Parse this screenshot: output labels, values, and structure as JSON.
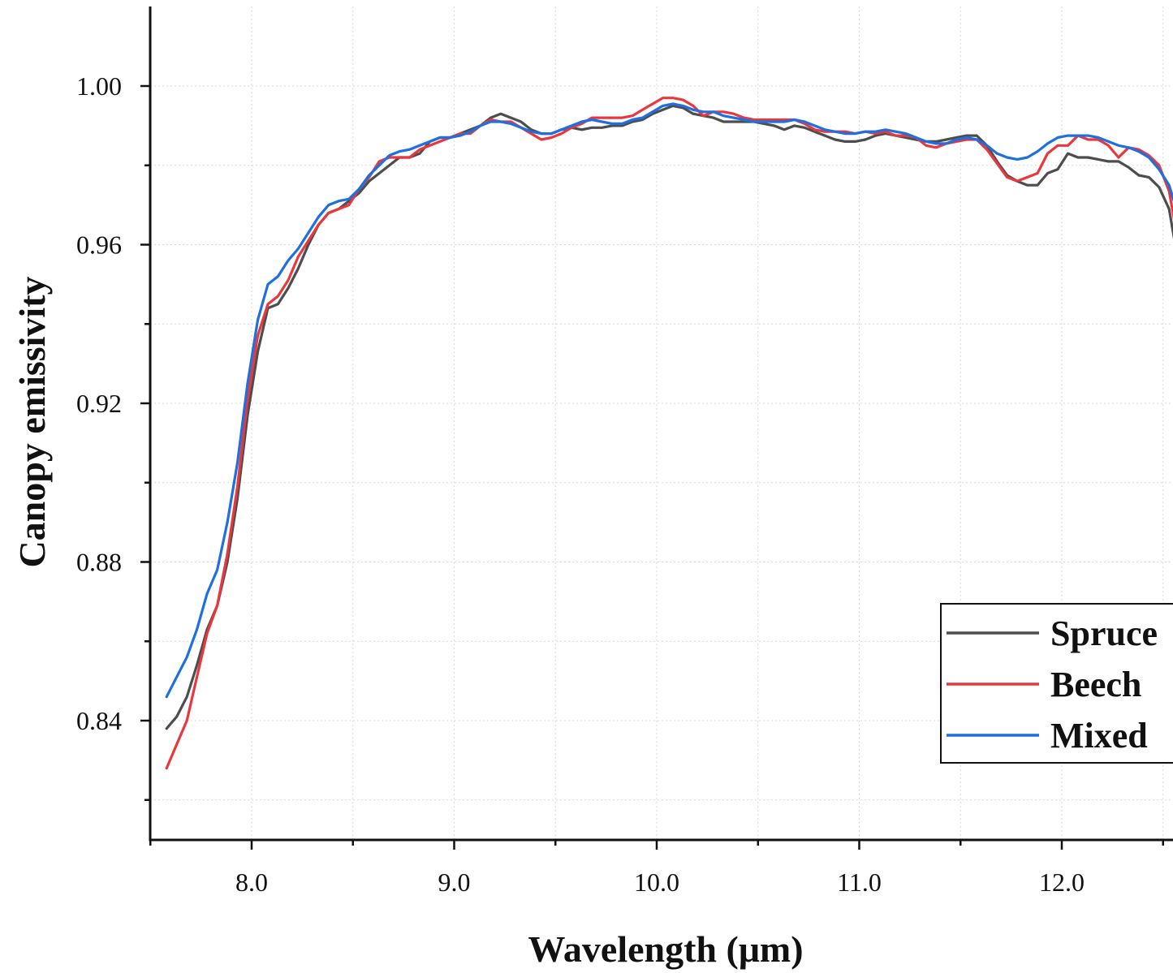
{
  "chart_data": {
    "type": "line",
    "title": "",
    "xlabel": "Wavelength (μm)",
    "ylabel": "Canopy emissivity",
    "xlim": [
      7.5,
      12.55
    ],
    "ylim": [
      0.81,
      1.02
    ],
    "x_ticks": [
      8.0,
      9.0,
      10.0,
      11.0,
      12.0
    ],
    "x_tick_labels": [
      "8.0",
      "9.0",
      "10.0",
      "11.0",
      "12.0"
    ],
    "x_minor_ticks": [
      7.5,
      8.5,
      9.5,
      10.5,
      11.5,
      12.5
    ],
    "y_ticks": [
      0.84,
      0.88,
      0.92,
      0.96,
      1.0
    ],
    "y_tick_labels": [
      "0.84",
      "0.88",
      "0.92",
      "0.96",
      "1.00"
    ],
    "y_minor_ticks": [
      0.82,
      0.86,
      0.9,
      0.94,
      0.98
    ],
    "grid": true,
    "legend_position": "bottom-right",
    "series": [
      {
        "name": "Spruce",
        "color": "#4d4d4d",
        "points": [
          [
            7.58,
            0.838
          ],
          [
            7.63,
            0.841
          ],
          [
            7.68,
            0.846
          ],
          [
            7.73,
            0.854
          ],
          [
            7.78,
            0.863
          ],
          [
            7.83,
            0.869
          ],
          [
            7.88,
            0.88
          ],
          [
            7.93,
            0.896
          ],
          [
            7.98,
            0.917
          ],
          [
            8.03,
            0.933
          ],
          [
            8.08,
            0.944
          ],
          [
            8.13,
            0.945
          ],
          [
            8.18,
            0.949
          ],
          [
            8.23,
            0.954
          ],
          [
            8.28,
            0.96
          ],
          [
            8.33,
            0.965
          ],
          [
            8.38,
            0.968
          ],
          [
            8.43,
            0.969
          ],
          [
            8.48,
            0.971
          ],
          [
            8.53,
            0.973
          ],
          [
            8.58,
            0.976
          ],
          [
            8.63,
            0.978
          ],
          [
            8.68,
            0.98
          ],
          [
            8.73,
            0.982
          ],
          [
            8.78,
            0.982
          ],
          [
            8.83,
            0.983
          ],
          [
            8.88,
            0.986
          ],
          [
            8.93,
            0.987
          ],
          [
            8.98,
            0.987
          ],
          [
            9.03,
            0.988
          ],
          [
            9.08,
            0.989
          ],
          [
            9.13,
            0.99
          ],
          [
            9.18,
            0.992
          ],
          [
            9.23,
            0.993
          ],
          [
            9.28,
            0.992
          ],
          [
            9.33,
            0.991
          ],
          [
            9.38,
            0.989
          ],
          [
            9.43,
            0.988
          ],
          [
            9.48,
            0.988
          ],
          [
            9.53,
            0.989
          ],
          [
            9.58,
            0.9895
          ],
          [
            9.63,
            0.989
          ],
          [
            9.68,
            0.9895
          ],
          [
            9.73,
            0.9895
          ],
          [
            9.78,
            0.99
          ],
          [
            9.83,
            0.99
          ],
          [
            9.88,
            0.991
          ],
          [
            9.93,
            0.9915
          ],
          [
            9.98,
            0.993
          ],
          [
            10.03,
            0.994
          ],
          [
            10.08,
            0.995
          ],
          [
            10.13,
            0.9945
          ],
          [
            10.18,
            0.993
          ],
          [
            10.23,
            0.9925
          ],
          [
            10.28,
            0.992
          ],
          [
            10.33,
            0.991
          ],
          [
            10.38,
            0.991
          ],
          [
            10.43,
            0.991
          ],
          [
            10.48,
            0.991
          ],
          [
            10.53,
            0.9905
          ],
          [
            10.58,
            0.99
          ],
          [
            10.63,
            0.989
          ],
          [
            10.68,
            0.99
          ],
          [
            10.73,
            0.9895
          ],
          [
            10.78,
            0.9885
          ],
          [
            10.83,
            0.9875
          ],
          [
            10.88,
            0.9865
          ],
          [
            10.93,
            0.986
          ],
          [
            10.98,
            0.986
          ],
          [
            11.03,
            0.9865
          ],
          [
            11.08,
            0.9875
          ],
          [
            11.13,
            0.988
          ],
          [
            11.18,
            0.9875
          ],
          [
            11.23,
            0.987
          ],
          [
            11.28,
            0.9865
          ],
          [
            11.33,
            0.986
          ],
          [
            11.38,
            0.986
          ],
          [
            11.43,
            0.9865
          ],
          [
            11.48,
            0.987
          ],
          [
            11.53,
            0.9875
          ],
          [
            11.58,
            0.9875
          ],
          [
            11.63,
            0.985
          ],
          [
            11.68,
            0.981
          ],
          [
            11.73,
            0.9775
          ],
          [
            11.78,
            0.976
          ],
          [
            11.83,
            0.975
          ],
          [
            11.88,
            0.975
          ],
          [
            11.93,
            0.978
          ],
          [
            11.98,
            0.979
          ],
          [
            12.03,
            0.983
          ],
          [
            12.08,
            0.982
          ],
          [
            12.13,
            0.982
          ],
          [
            12.18,
            0.9815
          ],
          [
            12.23,
            0.981
          ],
          [
            12.28,
            0.981
          ],
          [
            12.33,
            0.9795
          ],
          [
            12.38,
            0.9775
          ],
          [
            12.43,
            0.977
          ],
          [
            12.48,
            0.9745
          ],
          [
            12.53,
            0.969
          ],
          [
            12.56,
            0.96
          ]
        ]
      },
      {
        "name": "Beech",
        "color": "#e8383d",
        "points": [
          [
            7.58,
            0.828
          ],
          [
            7.63,
            0.834
          ],
          [
            7.68,
            0.84
          ],
          [
            7.73,
            0.851
          ],
          [
            7.78,
            0.862
          ],
          [
            7.83,
            0.869
          ],
          [
            7.88,
            0.882
          ],
          [
            7.93,
            0.899
          ],
          [
            7.98,
            0.921
          ],
          [
            8.03,
            0.937
          ],
          [
            8.08,
            0.945
          ],
          [
            8.13,
            0.947
          ],
          [
            8.18,
            0.951
          ],
          [
            8.23,
            0.957
          ],
          [
            8.28,
            0.961
          ],
          [
            8.33,
            0.965
          ],
          [
            8.38,
            0.968
          ],
          [
            8.43,
            0.969
          ],
          [
            8.48,
            0.97
          ],
          [
            8.53,
            0.974
          ],
          [
            8.58,
            0.977
          ],
          [
            8.63,
            0.981
          ],
          [
            8.68,
            0.982
          ],
          [
            8.73,
            0.982
          ],
          [
            8.78,
            0.982
          ],
          [
            8.83,
            0.984
          ],
          [
            8.88,
            0.985
          ],
          [
            8.93,
            0.986
          ],
          [
            8.98,
            0.987
          ],
          [
            9.03,
            0.988
          ],
          [
            9.08,
            0.988
          ],
          [
            9.13,
            0.99
          ],
          [
            9.18,
            0.9915
          ],
          [
            9.23,
            0.991
          ],
          [
            9.28,
            0.991
          ],
          [
            9.33,
            0.9895
          ],
          [
            9.38,
            0.988
          ],
          [
            9.43,
            0.9865
          ],
          [
            9.48,
            0.987
          ],
          [
            9.53,
            0.988
          ],
          [
            9.58,
            0.9895
          ],
          [
            9.63,
            0.9905
          ],
          [
            9.68,
            0.992
          ],
          [
            9.73,
            0.992
          ],
          [
            9.78,
            0.992
          ],
          [
            9.83,
            0.992
          ],
          [
            9.88,
            0.9925
          ],
          [
            9.93,
            0.994
          ],
          [
            9.98,
            0.9955
          ],
          [
            10.03,
            0.997
          ],
          [
            10.08,
            0.997
          ],
          [
            10.13,
            0.9965
          ],
          [
            10.18,
            0.995
          ],
          [
            10.23,
            0.9925
          ],
          [
            10.28,
            0.9935
          ],
          [
            10.33,
            0.9935
          ],
          [
            10.38,
            0.993
          ],
          [
            10.43,
            0.992
          ],
          [
            10.48,
            0.9915
          ],
          [
            10.53,
            0.9915
          ],
          [
            10.58,
            0.9915
          ],
          [
            10.63,
            0.9915
          ],
          [
            10.68,
            0.9915
          ],
          [
            10.73,
            0.9905
          ],
          [
            10.78,
            0.989
          ],
          [
            10.83,
            0.9885
          ],
          [
            10.88,
            0.9885
          ],
          [
            10.93,
            0.9885
          ],
          [
            10.98,
            0.988
          ],
          [
            11.03,
            0.9885
          ],
          [
            11.08,
            0.988
          ],
          [
            11.13,
            0.9885
          ],
          [
            11.18,
            0.9875
          ],
          [
            11.23,
            0.9875
          ],
          [
            11.28,
            0.987
          ],
          [
            11.33,
            0.985
          ],
          [
            11.38,
            0.9845
          ],
          [
            11.43,
            0.9855
          ],
          [
            11.48,
            0.986
          ],
          [
            11.53,
            0.9865
          ],
          [
            11.58,
            0.9865
          ],
          [
            11.63,
            0.984
          ],
          [
            11.68,
            0.9805
          ],
          [
            11.73,
            0.977
          ],
          [
            11.78,
            0.976
          ],
          [
            11.83,
            0.977
          ],
          [
            11.88,
            0.978
          ],
          [
            11.93,
            0.983
          ],
          [
            11.98,
            0.985
          ],
          [
            12.03,
            0.985
          ],
          [
            12.08,
            0.9875
          ],
          [
            12.13,
            0.9865
          ],
          [
            12.18,
            0.9865
          ],
          [
            12.23,
            0.985
          ],
          [
            12.28,
            0.982
          ],
          [
            12.33,
            0.9845
          ],
          [
            12.38,
            0.984
          ],
          [
            12.43,
            0.9825
          ],
          [
            12.48,
            0.98
          ],
          [
            12.53,
            0.9735
          ],
          [
            12.56,
            0.965
          ]
        ]
      },
      {
        "name": "Mixed",
        "color": "#1f6fe0",
        "points": [
          [
            7.58,
            0.846
          ],
          [
            7.63,
            0.851
          ],
          [
            7.68,
            0.856
          ],
          [
            7.73,
            0.863
          ],
          [
            7.78,
            0.872
          ],
          [
            7.83,
            0.878
          ],
          [
            7.88,
            0.89
          ],
          [
            7.93,
            0.905
          ],
          [
            7.98,
            0.925
          ],
          [
            8.03,
            0.941
          ],
          [
            8.08,
            0.95
          ],
          [
            8.13,
            0.952
          ],
          [
            8.18,
            0.956
          ],
          [
            8.23,
            0.959
          ],
          [
            8.28,
            0.963
          ],
          [
            8.33,
            0.967
          ],
          [
            8.38,
            0.97
          ],
          [
            8.43,
            0.971
          ],
          [
            8.48,
            0.9715
          ],
          [
            8.53,
            0.974
          ],
          [
            8.58,
            0.9775
          ],
          [
            8.63,
            0.98
          ],
          [
            8.68,
            0.9825
          ],
          [
            8.73,
            0.9835
          ],
          [
            8.78,
            0.984
          ],
          [
            8.83,
            0.985
          ],
          [
            8.88,
            0.986
          ],
          [
            8.93,
            0.987
          ],
          [
            8.98,
            0.987
          ],
          [
            9.03,
            0.9875
          ],
          [
            9.08,
            0.9885
          ],
          [
            9.13,
            0.99
          ],
          [
            9.18,
            0.991
          ],
          [
            9.23,
            0.991
          ],
          [
            9.28,
            0.9905
          ],
          [
            9.33,
            0.9895
          ],
          [
            9.38,
            0.9885
          ],
          [
            9.43,
            0.988
          ],
          [
            9.48,
            0.988
          ],
          [
            9.53,
            0.989
          ],
          [
            9.58,
            0.99
          ],
          [
            9.63,
            0.991
          ],
          [
            9.68,
            0.9915
          ],
          [
            9.73,
            0.991
          ],
          [
            9.78,
            0.9905
          ],
          [
            9.83,
            0.9905
          ],
          [
            9.88,
            0.9915
          ],
          [
            9.93,
            0.992
          ],
          [
            9.98,
            0.9935
          ],
          [
            10.03,
            0.995
          ],
          [
            10.08,
            0.9955
          ],
          [
            10.13,
            0.995
          ],
          [
            10.18,
            0.994
          ],
          [
            10.23,
            0.9935
          ],
          [
            10.28,
            0.9935
          ],
          [
            10.33,
            0.9925
          ],
          [
            10.38,
            0.992
          ],
          [
            10.43,
            0.9915
          ],
          [
            10.48,
            0.991
          ],
          [
            10.53,
            0.991
          ],
          [
            10.58,
            0.991
          ],
          [
            10.63,
            0.991
          ],
          [
            10.68,
            0.9915
          ],
          [
            10.73,
            0.991
          ],
          [
            10.78,
            0.99
          ],
          [
            10.83,
            0.989
          ],
          [
            10.88,
            0.9885
          ],
          [
            10.93,
            0.988
          ],
          [
            10.98,
            0.988
          ],
          [
            11.03,
            0.9885
          ],
          [
            11.08,
            0.9885
          ],
          [
            11.13,
            0.989
          ],
          [
            11.18,
            0.9885
          ],
          [
            11.23,
            0.988
          ],
          [
            11.28,
            0.987
          ],
          [
            11.33,
            0.986
          ],
          [
            11.38,
            0.9855
          ],
          [
            11.43,
            0.9855
          ],
          [
            11.48,
            0.9865
          ],
          [
            11.53,
            0.987
          ],
          [
            11.58,
            0.9865
          ],
          [
            11.63,
            0.985
          ],
          [
            11.68,
            0.983
          ],
          [
            11.73,
            0.982
          ],
          [
            11.78,
            0.9815
          ],
          [
            11.83,
            0.982
          ],
          [
            11.88,
            0.9835
          ],
          [
            11.93,
            0.9855
          ],
          [
            11.98,
            0.987
          ],
          [
            12.03,
            0.9875
          ],
          [
            12.08,
            0.9875
          ],
          [
            12.13,
            0.9875
          ],
          [
            12.18,
            0.987
          ],
          [
            12.23,
            0.986
          ],
          [
            12.28,
            0.985
          ],
          [
            12.33,
            0.9845
          ],
          [
            12.38,
            0.9835
          ],
          [
            12.43,
            0.982
          ],
          [
            12.48,
            0.979
          ],
          [
            12.53,
            0.975
          ],
          [
            12.56,
            0.97
          ]
        ]
      }
    ]
  }
}
